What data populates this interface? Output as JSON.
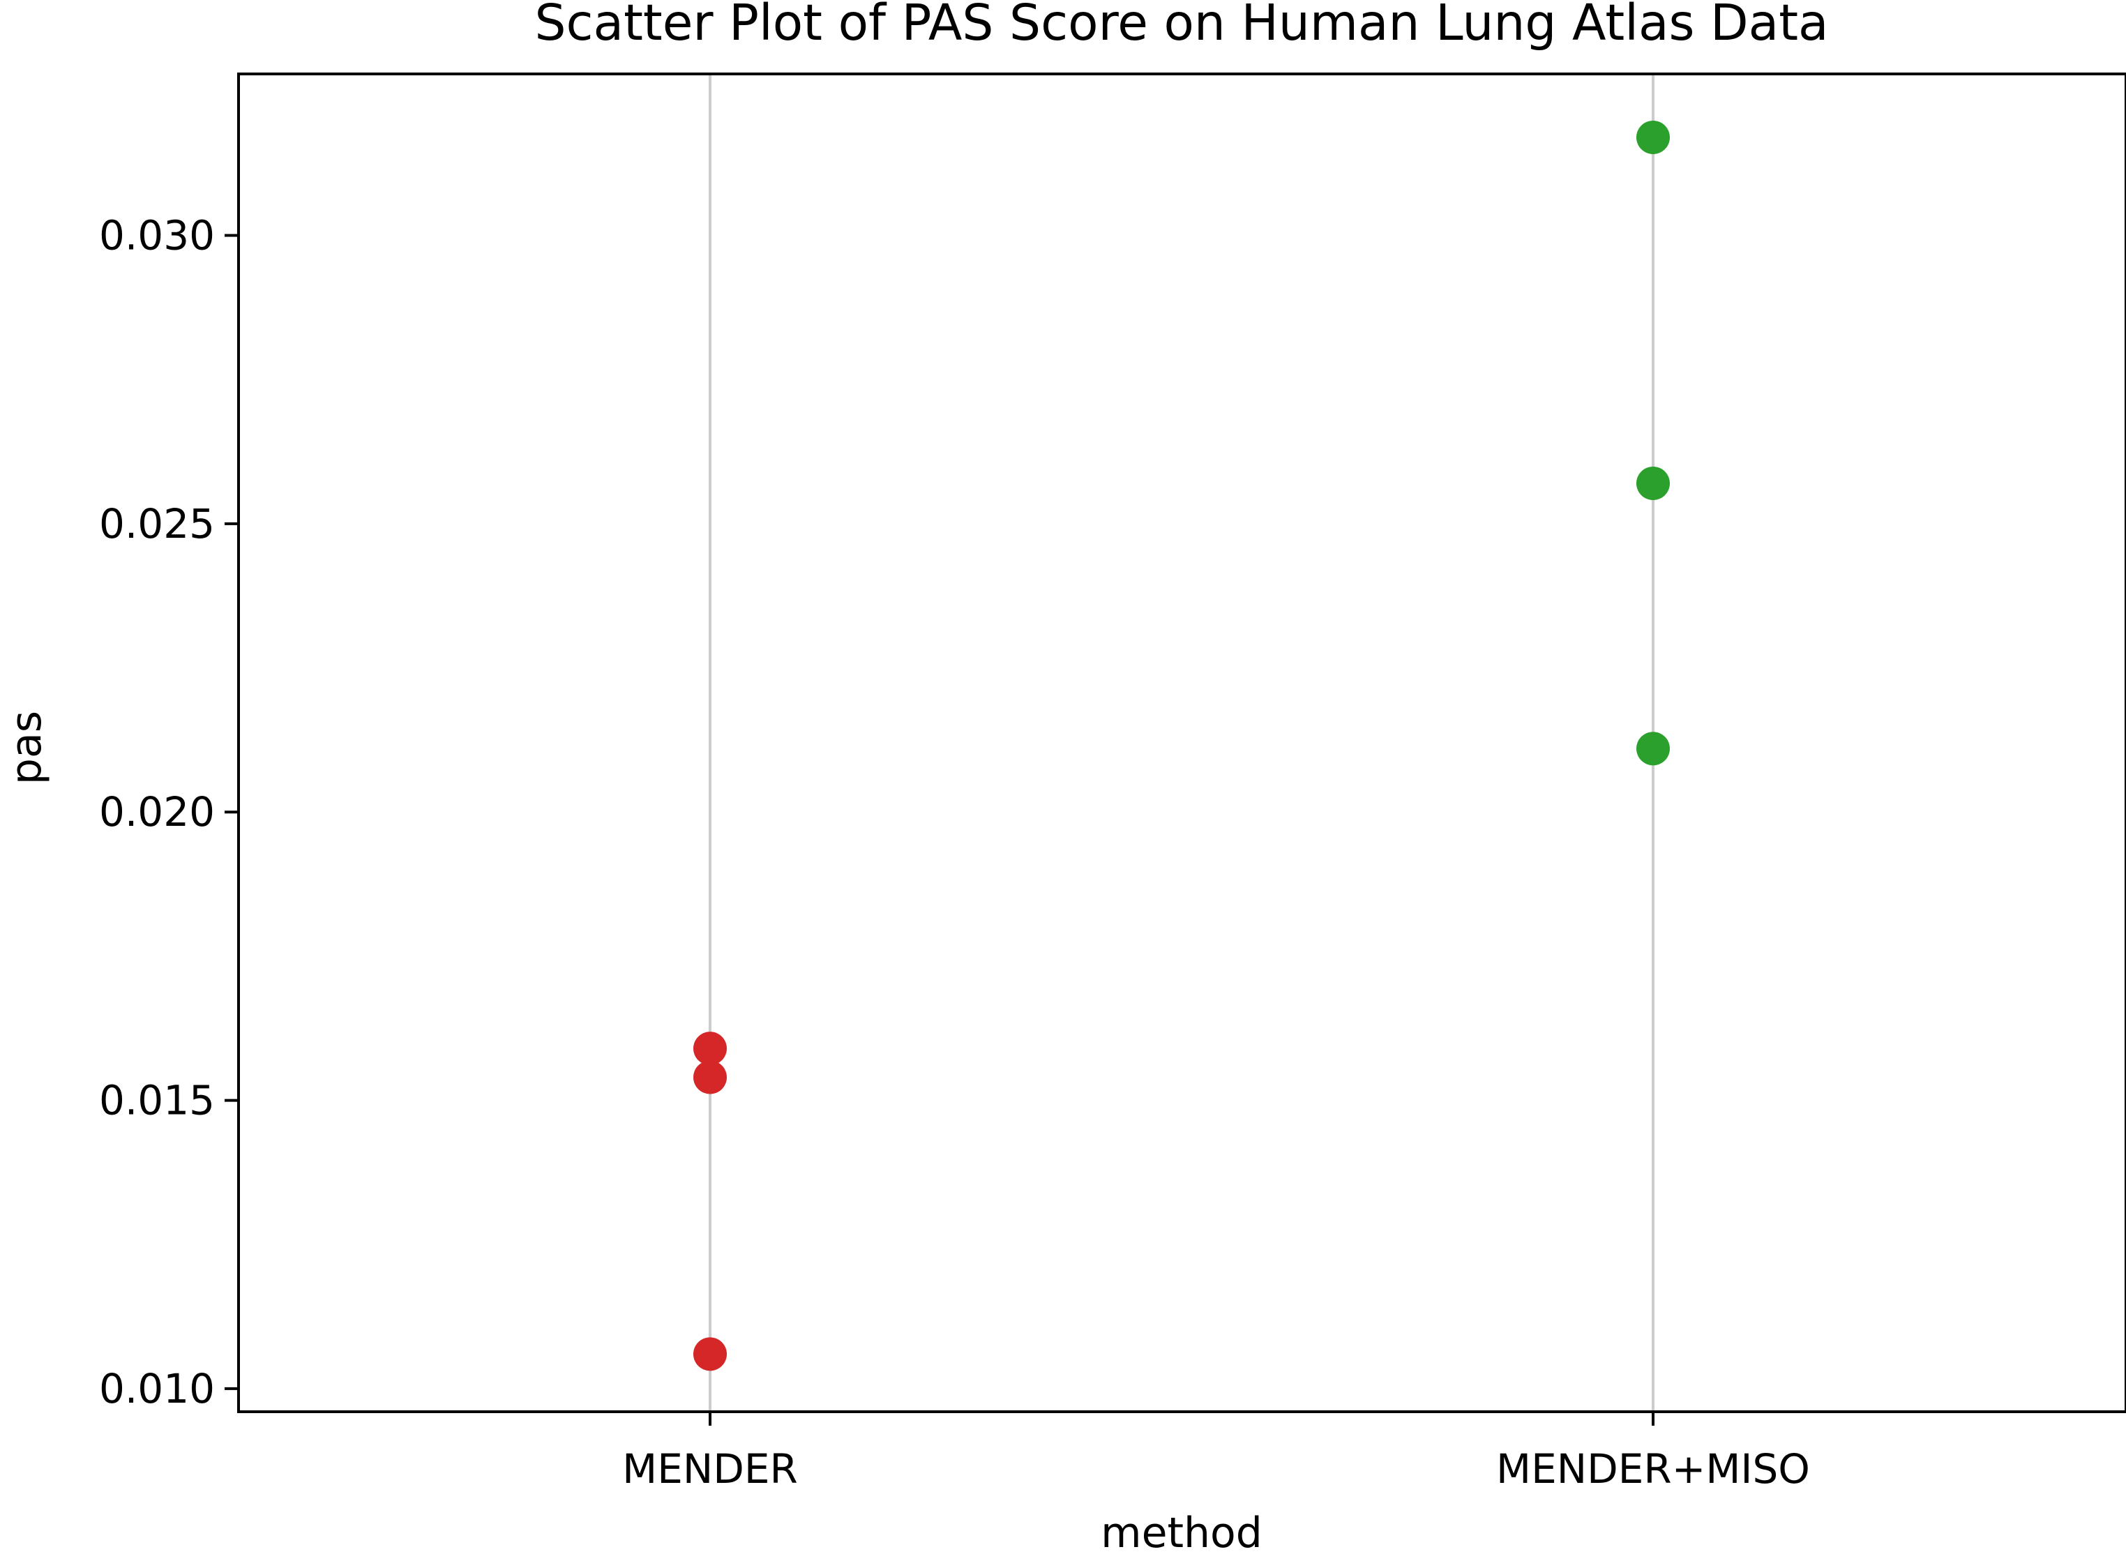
{
  "chart_data": {
    "type": "scatter",
    "title": "Scatter Plot of PAS Score on Human Lung Atlas Data",
    "xlabel": "method",
    "ylabel": "pas",
    "categories": [
      "MENDER",
      "MENDER+MISO"
    ],
    "ylim": [
      0.0096,
      0.0328
    ],
    "yticks": [
      {
        "value": 0.01,
        "label": "0.010"
      },
      {
        "value": 0.015,
        "label": "0.015"
      },
      {
        "value": 0.02,
        "label": "0.020"
      },
      {
        "value": 0.025,
        "label": "0.025"
      },
      {
        "value": 0.03,
        "label": "0.030"
      }
    ],
    "grid": "vertical lines at categories",
    "legend": "none",
    "points": [
      {
        "category": "MENDER",
        "y": 0.0159,
        "color": "#d62728"
      },
      {
        "category": "MENDER",
        "y": 0.0154,
        "color": "#d62728"
      },
      {
        "category": "MENDER",
        "y": 0.0106,
        "color": "#d62728"
      },
      {
        "category": "MENDER+MISO",
        "y": 0.0317,
        "color": "#2ca02c"
      },
      {
        "category": "MENDER+MISO",
        "y": 0.0257,
        "color": "#2ca02c"
      },
      {
        "category": "MENDER+MISO",
        "y": 0.0211,
        "color": "#2ca02c"
      }
    ],
    "colors": {
      "grid": "#cccccc",
      "axis": "#000000"
    }
  }
}
